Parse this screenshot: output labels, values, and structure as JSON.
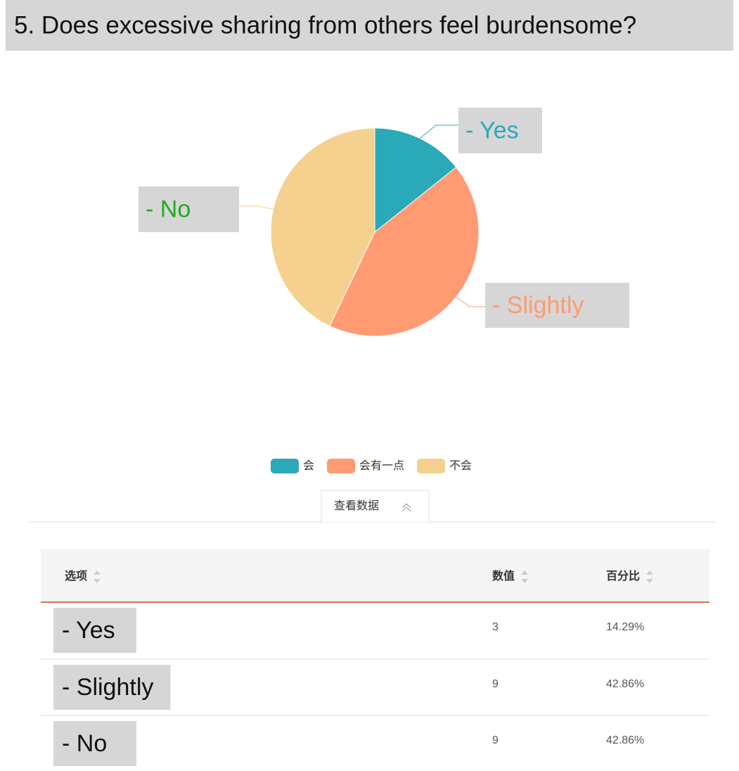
{
  "chart_data": {
    "type": "pie",
    "title": "5. Does excessive sharing from others feel burdensome?",
    "categories": [
      "会",
      "会有一点",
      "不会"
    ],
    "labels": [
      "- Yes",
      "- Slightly",
      "- No"
    ],
    "label_colors": [
      "#2aa9b8",
      "#ff9a73",
      "#22aa22"
    ],
    "values": [
      3,
      9,
      9
    ],
    "colors": [
      "#2aa9b8",
      "#ff9a73",
      "#f6d08e"
    ],
    "legend": "bottom"
  },
  "tab": "查看数据",
  "table": {
    "headers": [
      "选项",
      "数值",
      "百分比"
    ],
    "rows": [
      [
        "- Yes",
        "3",
        "14.29%"
      ],
      [
        "- Slightly",
        "9",
        "42.86%"
      ],
      [
        "- No",
        "9",
        "42.86%"
      ]
    ]
  }
}
